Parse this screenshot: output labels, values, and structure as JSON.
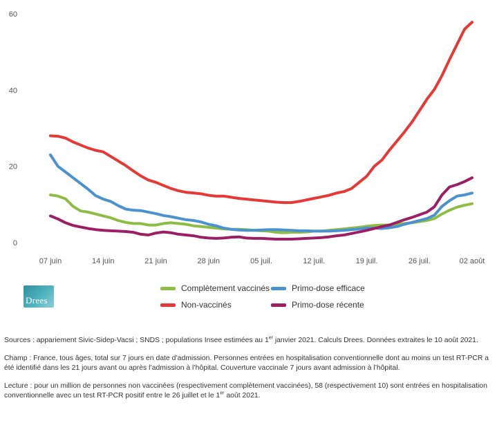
{
  "chart_data": {
    "type": "line",
    "title": "",
    "xlabel": "",
    "ylabel": "",
    "ylim": [
      0,
      60
    ],
    "xlim": [
      0,
      56
    ],
    "yticks": [
      0,
      20,
      40,
      60
    ],
    "xticks": [
      {
        "x": 0,
        "label": "07 juin"
      },
      {
        "x": 7,
        "label": "14 juin"
      },
      {
        "x": 14,
        "label": "21 juin"
      },
      {
        "x": 21,
        "label": "28 juin"
      },
      {
        "x": 28,
        "label": "05 juil."
      },
      {
        "x": 35,
        "label": "12 juil."
      },
      {
        "x": 42,
        "label": "19 juil."
      },
      {
        "x": 49,
        "label": "26 juil."
      },
      {
        "x": 56,
        "label": "02 août"
      }
    ],
    "grid": false,
    "series": [
      {
        "name": "Complètement vaccinés",
        "color": "#8fbc45",
        "points": [
          [
            0,
            12.5
          ],
          [
            1,
            12.2
          ],
          [
            2,
            11.5
          ],
          [
            3,
            9.5
          ],
          [
            4,
            8.3
          ],
          [
            5,
            8
          ],
          [
            6,
            7.5
          ],
          [
            7,
            7
          ],
          [
            8,
            6.5
          ],
          [
            9,
            5.8
          ],
          [
            10,
            5.3
          ],
          [
            11,
            5
          ],
          [
            12,
            5
          ],
          [
            13,
            4.6
          ],
          [
            14,
            4.6
          ],
          [
            15,
            5
          ],
          [
            16,
            5.2
          ],
          [
            17,
            5
          ],
          [
            18,
            4.8
          ],
          [
            19,
            4.4
          ],
          [
            20,
            4.2
          ],
          [
            21,
            4
          ],
          [
            22,
            3.8
          ],
          [
            23,
            3.6
          ],
          [
            24,
            3.5
          ],
          [
            25,
            3.5
          ],
          [
            26,
            3.4
          ],
          [
            27,
            3.2
          ],
          [
            28,
            3.1
          ],
          [
            29,
            3
          ],
          [
            30,
            2.7
          ],
          [
            31,
            2.6
          ],
          [
            32,
            2.7
          ],
          [
            33,
            2.7
          ],
          [
            34,
            2.8
          ],
          [
            35,
            3
          ],
          [
            36,
            3
          ],
          [
            37,
            3.2
          ],
          [
            38,
            3.4
          ],
          [
            39,
            3.6
          ],
          [
            40,
            3.8
          ],
          [
            41,
            4
          ],
          [
            42,
            4.3
          ],
          [
            43,
            4.5
          ],
          [
            44,
            4.6
          ],
          [
            45,
            4.6
          ],
          [
            46,
            4.8
          ],
          [
            47,
            5
          ],
          [
            48,
            5.2
          ],
          [
            49,
            5.5
          ],
          [
            50,
            5.8
          ],
          [
            51,
            6.3
          ],
          [
            52,
            7.5
          ],
          [
            53,
            8.5
          ],
          [
            54,
            9.3
          ],
          [
            55,
            9.8
          ],
          [
            56,
            10.2
          ]
        ]
      },
      {
        "name": "Primo-dose efficace",
        "color": "#4b93cf",
        "points": [
          [
            0,
            23
          ],
          [
            1,
            20
          ],
          [
            2,
            18.5
          ],
          [
            3,
            17
          ],
          [
            4,
            15.5
          ],
          [
            5,
            14
          ],
          [
            6,
            12.3
          ],
          [
            7,
            11.4
          ],
          [
            8,
            10.8
          ],
          [
            9,
            9.7
          ],
          [
            10,
            8.8
          ],
          [
            11,
            8.5
          ],
          [
            12,
            8.4
          ],
          [
            13,
            8
          ],
          [
            14,
            7.6
          ],
          [
            15,
            7.1
          ],
          [
            16,
            6.8
          ],
          [
            17,
            6.4
          ],
          [
            18,
            6
          ],
          [
            19,
            5.8
          ],
          [
            20,
            5.4
          ],
          [
            21,
            4.8
          ],
          [
            22,
            4.4
          ],
          [
            23,
            3.8
          ],
          [
            24,
            3.5
          ],
          [
            25,
            3.3
          ],
          [
            26,
            3.2
          ],
          [
            27,
            3.2
          ],
          [
            28,
            3.3
          ],
          [
            29,
            3.4
          ],
          [
            30,
            3.4
          ],
          [
            31,
            3.3
          ],
          [
            32,
            3.2
          ],
          [
            33,
            3.1
          ],
          [
            34,
            3.1
          ],
          [
            35,
            3
          ],
          [
            36,
            3
          ],
          [
            37,
            3
          ],
          [
            38,
            3.1
          ],
          [
            39,
            3.2
          ],
          [
            40,
            3.4
          ],
          [
            41,
            3.6
          ],
          [
            42,
            3.8
          ],
          [
            43,
            3.8
          ],
          [
            44,
            3.7
          ],
          [
            45,
            3.9
          ],
          [
            46,
            4.2
          ],
          [
            47,
            4.8
          ],
          [
            48,
            5.3
          ],
          [
            49,
            5.8
          ],
          [
            50,
            6.3
          ],
          [
            51,
            7.2
          ],
          [
            52,
            9.5
          ],
          [
            53,
            11
          ],
          [
            54,
            12.2
          ],
          [
            55,
            12.5
          ],
          [
            56,
            13
          ]
        ]
      },
      {
        "name": "Non-vaccinés",
        "color": "#e53935",
        "points": [
          [
            0,
            28
          ],
          [
            1,
            27.9
          ],
          [
            2,
            27.4
          ],
          [
            3,
            26.4
          ],
          [
            4,
            25.6
          ],
          [
            5,
            24.8
          ],
          [
            6,
            24.2
          ],
          [
            7,
            23.8
          ],
          [
            8,
            22.6
          ],
          [
            9,
            21.4
          ],
          [
            10,
            20.2
          ],
          [
            11,
            18.8
          ],
          [
            12,
            17.5
          ],
          [
            13,
            16.4
          ],
          [
            14,
            15.8
          ],
          [
            15,
            15
          ],
          [
            16,
            14.2
          ],
          [
            17,
            13.6
          ],
          [
            18,
            13.2
          ],
          [
            19,
            13
          ],
          [
            20,
            12.8
          ],
          [
            21,
            12.4
          ],
          [
            22,
            12.2
          ],
          [
            23,
            12.2
          ],
          [
            24,
            11.9
          ],
          [
            25,
            11.6
          ],
          [
            26,
            11.4
          ],
          [
            27,
            11.2
          ],
          [
            28,
            11
          ],
          [
            29,
            10.8
          ],
          [
            30,
            10.6
          ],
          [
            31,
            10.5
          ],
          [
            32,
            10.5
          ],
          [
            33,
            10.8
          ],
          [
            34,
            11.2
          ],
          [
            35,
            11.6
          ],
          [
            36,
            12
          ],
          [
            37,
            12.4
          ],
          [
            38,
            13
          ],
          [
            39,
            13.4
          ],
          [
            40,
            14.2
          ],
          [
            41,
            15.8
          ],
          [
            42,
            17.4
          ],
          [
            43,
            20
          ],
          [
            44,
            21.6
          ],
          [
            45,
            24.2
          ],
          [
            46,
            26.6
          ],
          [
            47,
            29
          ],
          [
            48,
            31.6
          ],
          [
            49,
            34.6
          ],
          [
            50,
            37.6
          ],
          [
            51,
            40.2
          ],
          [
            52,
            43.8
          ],
          [
            53,
            48
          ],
          [
            54,
            52
          ],
          [
            55,
            56
          ],
          [
            56,
            57.8
          ]
        ]
      },
      {
        "name": "Primo-dose récente",
        "color": "#9c1f64",
        "points": [
          [
            0,
            7
          ],
          [
            1,
            6.2
          ],
          [
            2,
            5.2
          ],
          [
            3,
            4.5
          ],
          [
            4,
            4.1
          ],
          [
            5,
            3.7
          ],
          [
            6,
            3.4
          ],
          [
            7,
            3.2
          ],
          [
            8,
            3.1
          ],
          [
            9,
            3
          ],
          [
            10,
            2.9
          ],
          [
            11,
            2.7
          ],
          [
            12,
            2.2
          ],
          [
            13,
            2
          ],
          [
            14,
            2.5
          ],
          [
            15,
            2.8
          ],
          [
            16,
            2.6
          ],
          [
            17,
            2.2
          ],
          [
            18,
            2
          ],
          [
            19,
            1.8
          ],
          [
            20,
            1.4
          ],
          [
            21,
            1.2
          ],
          [
            22,
            1.1
          ],
          [
            23,
            1.2
          ],
          [
            24,
            1.4
          ],
          [
            25,
            1.5
          ],
          [
            26,
            1.2
          ],
          [
            27,
            1.1
          ],
          [
            28,
            1.1
          ],
          [
            29,
            1
          ],
          [
            30,
            0.9
          ],
          [
            31,
            0.9
          ],
          [
            32,
            0.9
          ],
          [
            33,
            1
          ],
          [
            34,
            1.1
          ],
          [
            35,
            1.2
          ],
          [
            36,
            1.3
          ],
          [
            37,
            1.5
          ],
          [
            38,
            1.8
          ],
          [
            39,
            2
          ],
          [
            40,
            2.4
          ],
          [
            41,
            2.8
          ],
          [
            42,
            3.2
          ],
          [
            43,
            3.7
          ],
          [
            44,
            4.2
          ],
          [
            45,
            4.6
          ],
          [
            46,
            5.3
          ],
          [
            47,
            6
          ],
          [
            48,
            6.6
          ],
          [
            49,
            7.3
          ],
          [
            50,
            8
          ],
          [
            51,
            9.4
          ],
          [
            52,
            12.5
          ],
          [
            53,
            14.6
          ],
          [
            54,
            15.2
          ],
          [
            55,
            16
          ],
          [
            56,
            17
          ]
        ]
      }
    ]
  },
  "legend": {
    "items": [
      {
        "label": "Complètement vaccinés",
        "color": "#8fbc45"
      },
      {
        "label": "Primo-dose efficace",
        "color": "#4b93cf"
      },
      {
        "label": "Non-vaccinés",
        "color": "#e53935"
      },
      {
        "label": "Primo-dose récente",
        "color": "#9c1f64"
      }
    ]
  },
  "logo": {
    "text": "Drees"
  },
  "notes": {
    "sources_a": "Sources : appariement Sivic-Sidep-Vacsi ; SNDS ; populations Insee estimées au 1",
    "sources_sup": "er",
    "sources_b": " janvier 2021. Calculs Drees. Données extraites le 10 août 2021.",
    "champ": "Champ : France, tous âges, total sur 7 jours en date d’admission. Personnes entrées en hospitalisation conventionnelle dont au moins un test RT-PCR a été identifié dans les 21 jours avant ou après l’admission à l’hôpital. Couverture vaccinale 7 jours avant admission à l’hôpital.",
    "lecture_a": "Lecture : pour un million de personnes non vaccinées (respectivement complètement vaccinées), 58 (respectivement 10) sont entrées en hospitalisation conventionnelle avec un test RT-PCR positif entre le 26 juillet et le 1",
    "lecture_sup": "er",
    "lecture_b": " août 2021."
  }
}
